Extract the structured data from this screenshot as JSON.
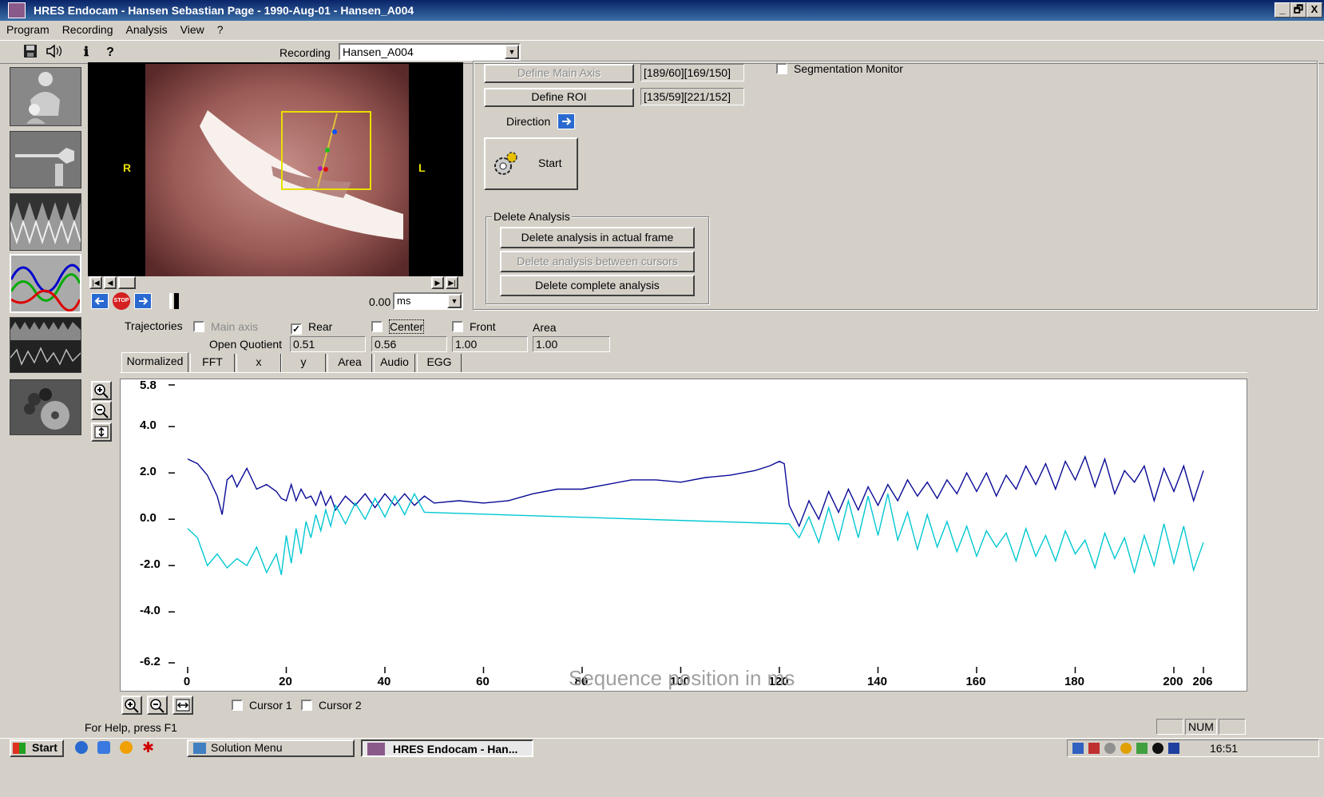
{
  "window": {
    "title": "HRES Endocam - Hansen Sebastian Page - 1990-Aug-01 - Hansen_A004",
    "controls": [
      "_",
      "🗗",
      "X"
    ]
  },
  "menu": [
    "Program",
    "Recording",
    "Analysis",
    "View",
    "?"
  ],
  "toolbar": {
    "recording_label": "Recording",
    "recording_value": "Hansen_A004",
    "icons": [
      "save-icon",
      "speaker-icon",
      "info-icon",
      "help-icon"
    ]
  },
  "video": {
    "label_r": "R",
    "label_l": "L",
    "time_value": "0.00",
    "time_unit": "ms"
  },
  "controls": {
    "define_main_axis": "Define Main Axis",
    "main_axis_value": "[189/60][169/150]",
    "define_roi": "Define ROI",
    "roi_value": "[135/59][221/152]",
    "direction": "Direction",
    "start": "Start",
    "segmentation_monitor": "Segmentation Monitor",
    "delete_group": "Delete Analysis",
    "delete_actual": "Delete analysis in actual frame",
    "delete_between": "Delete analysis between cursors",
    "delete_complete": "Delete complete analysis"
  },
  "trajectories": {
    "label": "Trajectories",
    "main_axis": "Main axis",
    "rear": "Rear",
    "center": "Center",
    "front": "Front",
    "area": "Area",
    "open_quotient_label": "Open Quotient",
    "oq_rear": "0.51",
    "oq_center": "0.56",
    "oq_front": "1.00",
    "oq_area": "1.00"
  },
  "tabs": [
    "Normalized",
    "FFT",
    "x",
    "y",
    "Area",
    "Audio",
    "EGG"
  ],
  "chart_data": {
    "type": "line",
    "xlabel": "Sequence position in ms",
    "ylabel": "",
    "ylim": [
      -6.2,
      5.8
    ],
    "xlim": [
      0,
      206
    ],
    "y_ticks": [
      "5.8",
      "4.0",
      "2.0",
      "0.0",
      "-2.0",
      "-4.0",
      "-6.2"
    ],
    "x_ticks": [
      "0",
      "20",
      "40",
      "60",
      "80",
      "100",
      "120",
      "140",
      "160",
      "180",
      "200",
      "206"
    ],
    "series": [
      {
        "color": "#0a0a96",
        "x": [
          0,
          2,
          4,
          6,
          7,
          8,
          9,
          10,
          12,
          14,
          16,
          18,
          19,
          20,
          21,
          22,
          23,
          24,
          25,
          26,
          27,
          28,
          29,
          30,
          32,
          34,
          36,
          38,
          40,
          42,
          44,
          46,
          48,
          50,
          55,
          60,
          65,
          70,
          75,
          80,
          85,
          90,
          95,
          100,
          105,
          110,
          115,
          118,
          120,
          121,
          122,
          124,
          126,
          128,
          130,
          132,
          134,
          136,
          138,
          140,
          142,
          144,
          146,
          148,
          150,
          152,
          154,
          156,
          158,
          160,
          162,
          164,
          166,
          168,
          170,
          172,
          174,
          176,
          178,
          180,
          182,
          184,
          186,
          188,
          190,
          192,
          194,
          196,
          198,
          200,
          202,
          204,
          206
        ],
        "y": [
          2.6,
          2.4,
          1.9,
          1.0,
          0.2,
          1.7,
          1.9,
          1.4,
          2.2,
          1.3,
          1.5,
          1.2,
          0.9,
          0.8,
          1.5,
          0.8,
          1.3,
          0.9,
          1.0,
          0.6,
          1.2,
          0.6,
          1.0,
          0.4,
          1.0,
          0.6,
          1.1,
          0.5,
          1.1,
          0.6,
          1.1,
          0.6,
          1.0,
          0.7,
          0.8,
          0.7,
          0.8,
          1.1,
          1.3,
          1.3,
          1.5,
          1.7,
          1.7,
          1.6,
          1.8,
          1.9,
          2.1,
          2.3,
          2.5,
          2.4,
          0.6,
          -0.3,
          0.8,
          0.0,
          1.2,
          0.3,
          1.3,
          0.4,
          1.4,
          0.6,
          1.5,
          0.8,
          1.7,
          1.0,
          1.6,
          0.9,
          1.7,
          1.1,
          2.0,
          1.2,
          2.0,
          1.0,
          1.9,
          1.3,
          2.3,
          1.5,
          2.4,
          1.3,
          2.5,
          1.7,
          2.7,
          1.4,
          2.6,
          1.1,
          2.1,
          1.6,
          2.3,
          0.8,
          2.2,
          1.2,
          2.3,
          0.8,
          2.1
        ]
      },
      {
        "color": "#00c8d2",
        "x": [
          0,
          2,
          4,
          6,
          8,
          10,
          12,
          14,
          16,
          18,
          19,
          20,
          21,
          22,
          23,
          24,
          25,
          26,
          27,
          28,
          29,
          30,
          32,
          34,
          36,
          38,
          40,
          42,
          44,
          46,
          48,
          122,
          124,
          126,
          128,
          130,
          132,
          134,
          136,
          138,
          140,
          142,
          144,
          146,
          148,
          150,
          152,
          154,
          156,
          158,
          160,
          162,
          164,
          166,
          168,
          170,
          172,
          174,
          176,
          178,
          180,
          182,
          184,
          186,
          188,
          190,
          192,
          194,
          196,
          198,
          200,
          202,
          204,
          206
        ],
        "y": [
          -0.4,
          -0.8,
          -2.0,
          -1.5,
          -2.1,
          -1.7,
          -2.0,
          -1.2,
          -2.3,
          -1.5,
          -2.4,
          -0.7,
          -1.9,
          -0.4,
          -1.5,
          -0.1,
          -0.8,
          0.2,
          -0.5,
          0.4,
          -0.3,
          0.6,
          -0.2,
          0.7,
          0.0,
          0.9,
          0.1,
          1.0,
          0.2,
          1.1,
          0.3,
          -0.2,
          -0.8,
          0.1,
          -1.0,
          0.5,
          -0.9,
          0.8,
          -0.8,
          1.0,
          -0.7,
          1.1,
          -0.9,
          0.3,
          -1.3,
          0.2,
          -1.2,
          -0.1,
          -1.4,
          -0.3,
          -1.6,
          -0.5,
          -1.2,
          -0.6,
          -1.8,
          -0.4,
          -1.6,
          -0.7,
          -1.8,
          -0.5,
          -1.5,
          -0.9,
          -2.1,
          -0.6,
          -1.7,
          -0.8,
          -2.3,
          -0.7,
          -2.0,
          -0.2,
          -1.9,
          -0.3,
          -2.2,
          -1.0
        ]
      }
    ]
  },
  "cursors": {
    "cursor1": "Cursor 1",
    "cursor2": "Cursor 2"
  },
  "status": {
    "help": "For Help, press F1",
    "num": "NUM"
  },
  "taskbar": {
    "start": "Start",
    "solution_menu": "Solution Menu",
    "active_app": "HRES Endocam - Han...",
    "clock": "16:51"
  }
}
